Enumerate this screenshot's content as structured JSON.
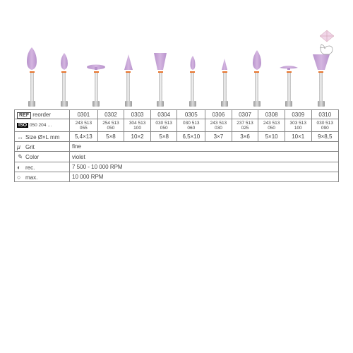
{
  "products": [
    {
      "ref": "0301",
      "iso": "243 513 055",
      "size": "5,4×13",
      "shape": "flame-large"
    },
    {
      "ref": "0302",
      "iso": "254 513 050",
      "size": "5×8",
      "shape": "flame-small"
    },
    {
      "ref": "0303",
      "iso": "304 513 100",
      "size": "10×2",
      "shape": "disc"
    },
    {
      "ref": "0304",
      "iso": "030 513 050",
      "size": "5×8",
      "shape": "cone"
    },
    {
      "ref": "0305",
      "iso": "030 513 060",
      "size": "6,5×10",
      "shape": "cup-large"
    },
    {
      "ref": "0306",
      "iso": "243 513 030",
      "size": "3×7",
      "shape": "flame-tiny"
    },
    {
      "ref": "0307",
      "iso": "237 513 025",
      "size": "3×6",
      "shape": "cone-tiny"
    },
    {
      "ref": "0308",
      "iso": "243 513 050",
      "size": "5×10",
      "shape": "flame-med"
    },
    {
      "ref": "0309",
      "iso": "303 513 100",
      "size": "10×1",
      "shape": "lens"
    },
    {
      "ref": "0310",
      "iso": "030 513 090",
      "size": "9×8,5",
      "shape": "cup-wide"
    }
  ],
  "labels": {
    "reorder": "reorder",
    "iso_prefix": "050 204 …",
    "size": "Size Ø×L mm",
    "grit": "Grit",
    "grit_val": "fine",
    "color": "Color",
    "color_val": "violet",
    "rec": "rec.",
    "rec_val": "7 500 - 10 000 RPM",
    "max": "max.",
    "max_val": "10 000 RPM"
  },
  "colors": {
    "violet": "#d4b5e0",
    "violet_dark": "#b893cc",
    "orange": "#e8742c"
  }
}
